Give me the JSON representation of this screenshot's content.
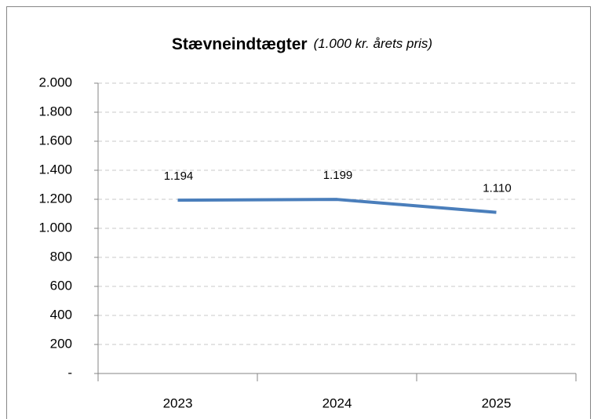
{
  "chart_data": {
    "type": "line",
    "title": "Stævneindtægter",
    "subtitle": "(1.000 kr. årets pris)",
    "categories": [
      "2023",
      "2024",
      "2025"
    ],
    "series": [
      {
        "name": null,
        "color": "#4a7ebb",
        "values": [
          1194,
          1199,
          1110
        ],
        "value_labels": [
          "1.194",
          "1.199",
          "1.110"
        ]
      }
    ],
    "ylim": [
      0,
      2000
    ],
    "yticks": [
      {
        "value": 0,
        "label": "-"
      },
      200,
      400,
      600,
      800,
      {
        "value": 1000,
        "label": "1.000"
      },
      {
        "value": 1200,
        "label": "1.200"
      },
      {
        "value": 1400,
        "label": "1.400"
      },
      {
        "value": 1600,
        "label": "1.600"
      },
      {
        "value": 1800,
        "label": "1.800"
      },
      {
        "value": 2000,
        "label": "2.000"
      }
    ],
    "grid": true
  }
}
